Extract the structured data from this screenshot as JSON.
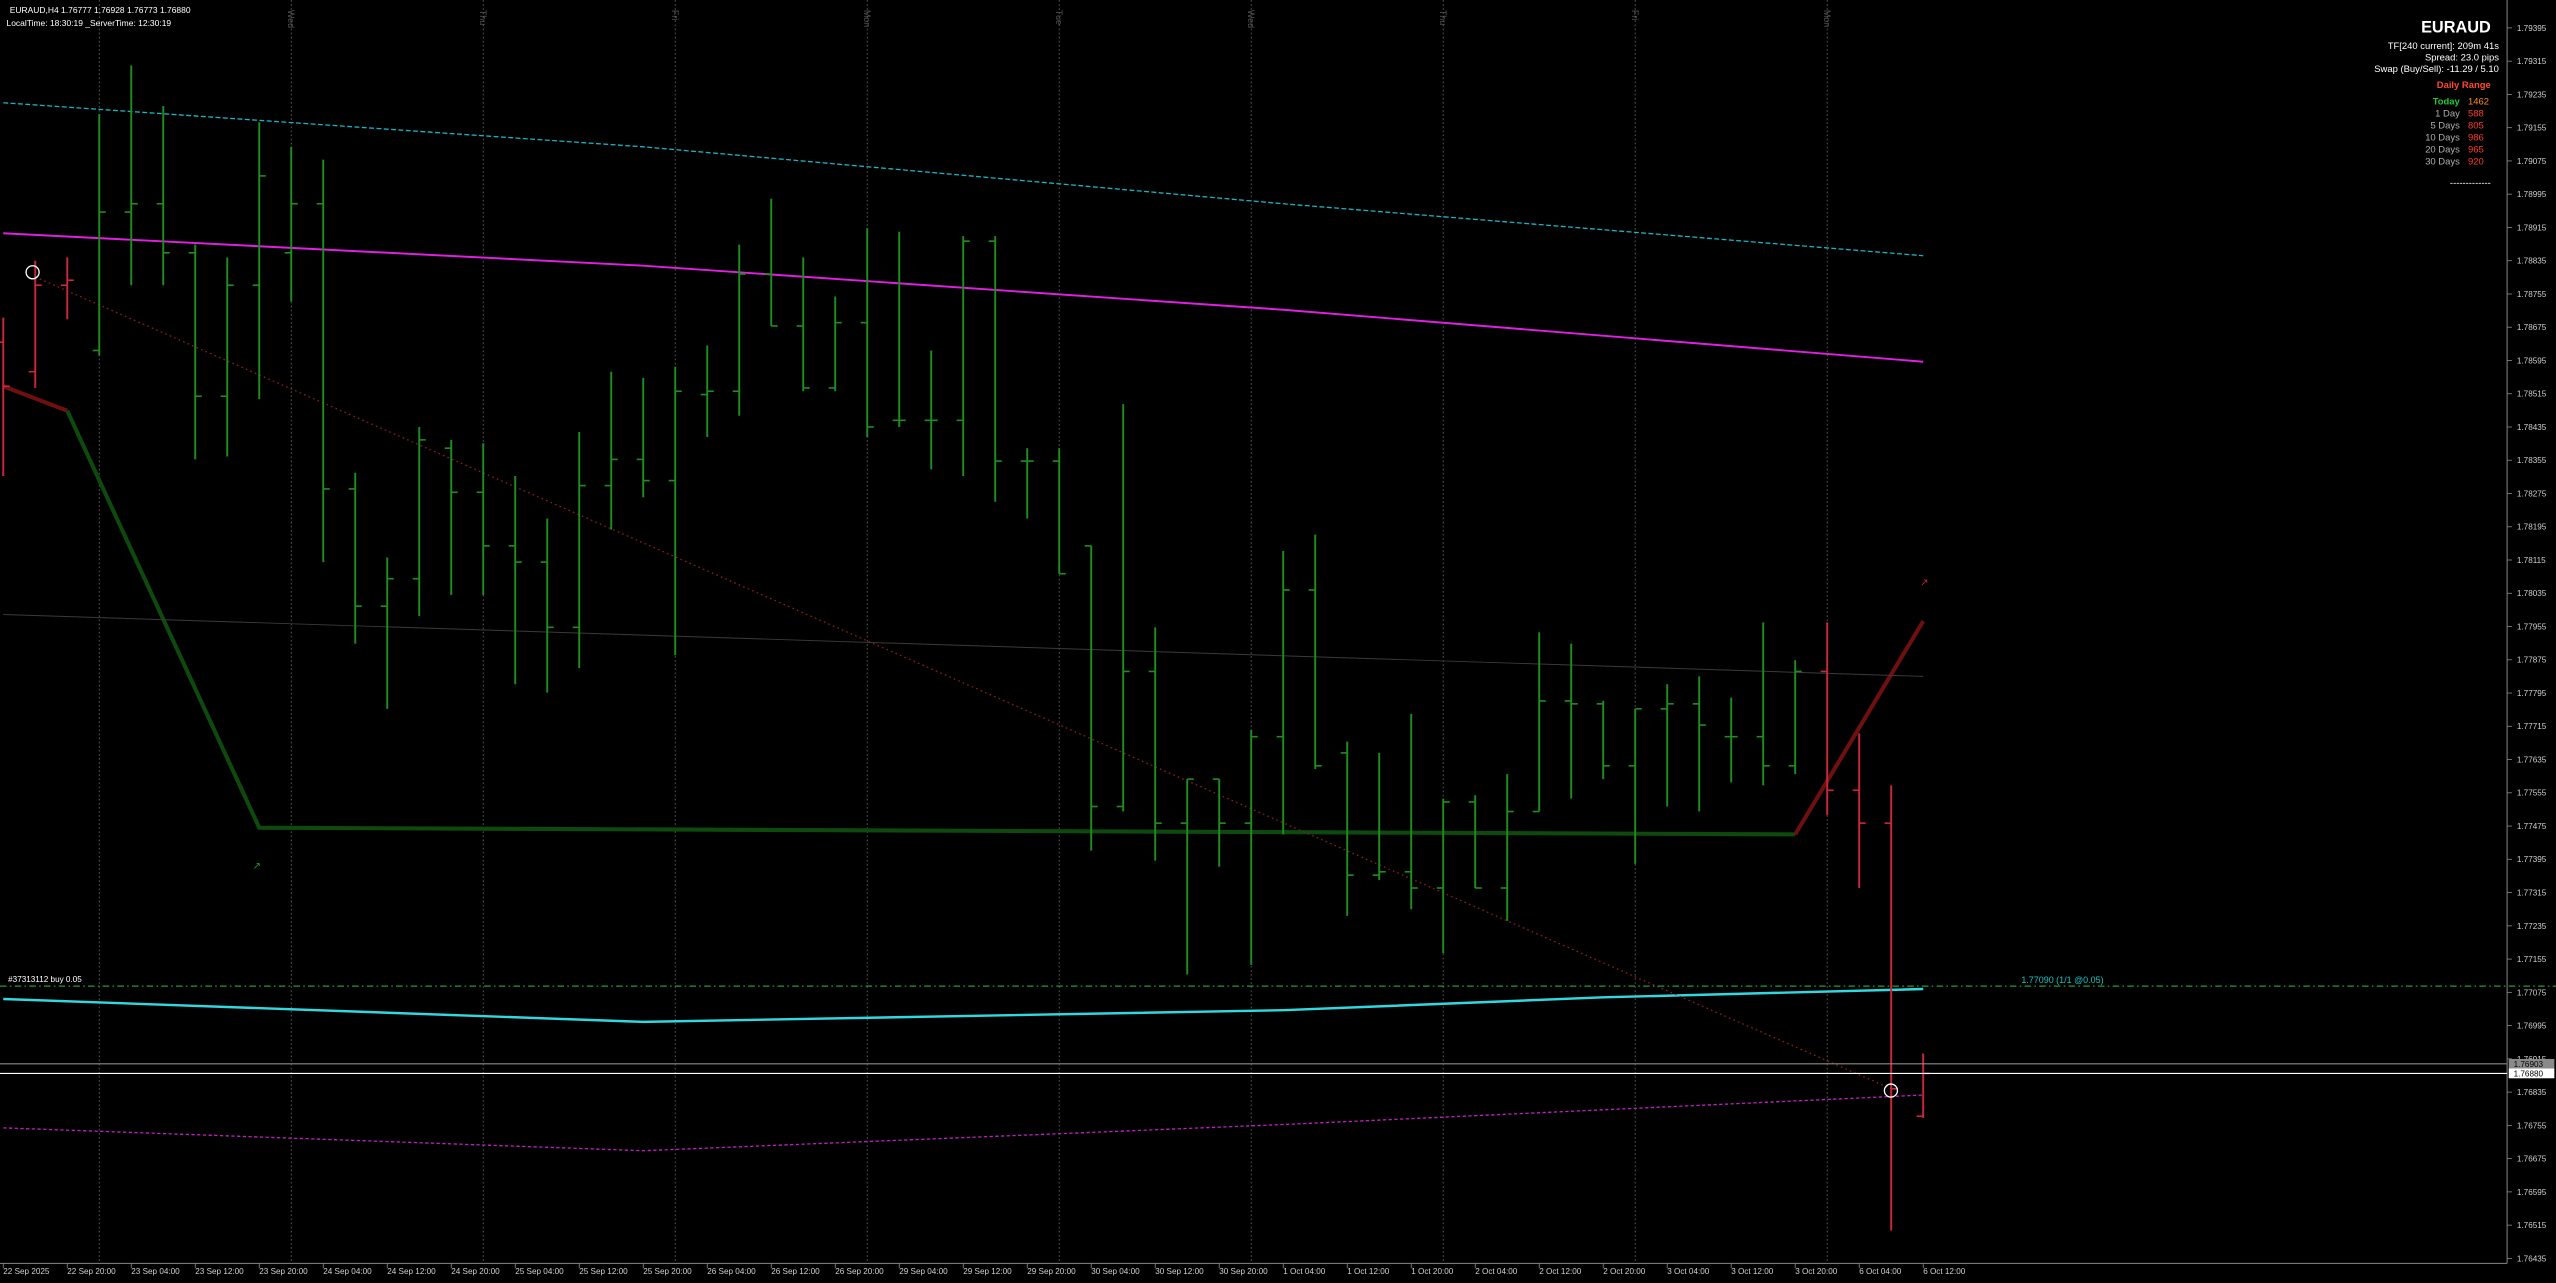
{
  "chart_data": {
    "type": "ohlc",
    "title": "EURAUD,H4  1.76777 1.76928 1.76773 1.76880",
    "subtitle": "LocalTime: 18:30:19  _ServerTime: 12:30:19",
    "categories": [
      "22 Sep 2025",
      null,
      "22 Sep 20:00",
      null,
      "23 Sep 04:00",
      null,
      "23 Sep 12:00",
      null,
      "23 Sep 20:00",
      null,
      "24 Sep 04:00",
      null,
      "24 Sep 12:00",
      null,
      "24 Sep 20:00",
      null,
      "25 Sep 04:00",
      null,
      "25 Sep 12:00",
      null,
      "25 Sep 20:00",
      null,
      "26 Sep 04:00",
      null,
      "26 Sep 12:00",
      null,
      "26 Sep 20:00",
      null,
      "29 Sep 04:00",
      null,
      "29 Sep 12:00",
      null,
      "29 Sep 20:00",
      null,
      "30 Sep 04:00",
      null,
      "30 Sep 12:00",
      null,
      "30 Sep 20:00",
      null,
      "1 Oct 04:00",
      null,
      "1 Oct 12:00",
      null,
      "1 Oct 20:00",
      null,
      "2 Oct 04:00",
      null,
      "2 Oct 12:00",
      null,
      "2 Oct 20:00",
      null,
      "3 Oct 04:00",
      null,
      "3 Oct 12:00",
      null,
      "3 Oct 20:00",
      null,
      "6 Oct 04:00",
      null,
      "6 Oct 12:00"
    ],
    "open": [
      1.78639,
      1.78568,
      1.78776,
      1.78619,
      1.78952,
      1.78972,
      1.78854,
      1.78509,
      1.78776,
      1.78854,
      1.78972,
      1.78286,
      1.78004,
      1.7807,
      1.78384,
      1.78278,
      1.78149,
      1.7811,
      1.77953,
      1.78294,
      1.78357,
      1.78306,
      1.78513,
      1.78521,
      1.78803,
      1.78678,
      1.78529,
      1.78686,
      1.78451,
      1.78451,
      1.78451,
      1.78882,
      1.78353,
      1.78353,
      1.78149,
      1.77522,
      1.77847,
      1.77482,
      1.77588,
      1.77482,
      1.7769,
      1.78043,
      1.77651,
      1.77357,
      1.77365,
      1.77326,
      1.77533,
      1.77326,
      1.7751,
      1.77776,
      1.77769,
      1.7762,
      1.77757,
      1.77769,
      1.7769,
      1.7769,
      1.7762,
      1.77847,
      1.77561,
      1.77482,
      1.76777
    ],
    "high": [
      1.78698,
      1.78835,
      1.78843,
      1.79188,
      1.79305,
      1.79207,
      1.78874,
      1.78843,
      1.79168,
      1.79109,
      1.79078,
      1.78325,
      1.78121,
      1.78435,
      1.78404,
      1.78396,
      1.78317,
      1.78215,
      1.78423,
      1.78568,
      1.78553,
      1.7858,
      1.78631,
      1.78874,
      1.78984,
      1.78843,
      1.78749,
      1.78913,
      1.78905,
      1.78619,
      1.78894,
      1.78894,
      1.78384,
      1.78384,
      1.78149,
      1.7849,
      1.77953,
      1.77588,
      1.77588,
      1.77706,
      1.78137,
      1.78176,
      1.77678,
      1.77651,
      1.77745,
      1.77541,
      1.77549,
      1.776,
      1.77941,
      1.77914,
      1.77776,
      1.77757,
      1.77816,
      1.77835,
      1.77784,
      1.77965,
      1.77874,
      1.77965,
      1.77698,
      1.77573,
      1.76928
    ],
    "low": [
      1.78317,
      1.78529,
      1.78694,
      1.78607,
      1.78776,
      1.78776,
      1.78357,
      1.78364,
      1.78502,
      1.78737,
      1.7811,
      1.77914,
      1.77757,
      1.7798,
      1.78031,
      1.78031,
      1.77816,
      1.77796,
      1.77855,
      1.78188,
      1.78266,
      1.77886,
      1.78411,
      1.78462,
      1.78678,
      1.78521,
      1.78521,
      1.78411,
      1.78435,
      1.78333,
      1.78317,
      1.78255,
      1.78215,
      1.78082,
      1.77416,
      1.7751,
      1.77392,
      1.77118,
      1.77377,
      1.77141,
      1.77455,
      1.77612,
      1.77259,
      1.77345,
      1.77275,
      1.77169,
      1.77326,
      1.77247,
      1.7751,
      1.77541,
      1.77588,
      1.77384,
      1.77522,
      1.7751,
      1.7758,
      1.77573,
      1.776,
      1.77502,
      1.77326,
      1.76502,
      1.76773
    ],
    "close": [
      1.78533,
      1.78776,
      1.78788,
      1.78952,
      1.78972,
      1.78854,
      1.78509,
      1.78776,
      1.79039,
      1.78972,
      1.78286,
      1.78004,
      1.7807,
      1.78404,
      1.78278,
      1.78149,
      1.7811,
      1.77953,
      1.78294,
      1.78357,
      1.78306,
      1.78521,
      1.78521,
      1.78803,
      1.78678,
      1.78529,
      1.78686,
      1.78435,
      1.78451,
      1.78451,
      1.78882,
      1.78353,
      1.78353,
      1.78082,
      1.77522,
      1.77847,
      1.77482,
      1.77588,
      1.77482,
      1.7769,
      1.78043,
      1.7762,
      1.77357,
      1.77365,
      1.77326,
      1.77533,
      1.77326,
      1.7751,
      1.77776,
      1.77769,
      1.7762,
      1.77757,
      1.77769,
      1.77718,
      1.7769,
      1.7762,
      1.77847,
      1.77561,
      1.77482,
      1.76843,
      1.7688
    ],
    "colors": [
      "#c8283c",
      "#c8283c",
      "#c8283c",
      "#1e8c1e",
      "#1e8c1e",
      "#1e8c1e",
      "#1e8c1e",
      "#1e8c1e",
      "#1e8c1e",
      "#1e8c1e",
      "#1e8c1e",
      "#1e8c1e",
      "#1e8c1e",
      "#1e8c1e",
      "#1e8c1e",
      "#1e8c1e",
      "#1e8c1e",
      "#1e8c1e",
      "#1e8c1e",
      "#1e8c1e",
      "#1e8c1e",
      "#1e8c1e",
      "#1e8c1e",
      "#1e8c1e",
      "#1e8c1e",
      "#1e8c1e",
      "#1e8c1e",
      "#1e8c1e",
      "#1e8c1e",
      "#1e8c1e",
      "#1e8c1e",
      "#1e8c1e",
      "#1e8c1e",
      "#1e8c1e",
      "#1e8c1e",
      "#1e8c1e",
      "#1e8c1e",
      "#1e8c1e",
      "#1e8c1e",
      "#1e8c1e",
      "#1e8c1e",
      "#1e8c1e",
      "#1e8c1e",
      "#1e8c1e",
      "#1e8c1e",
      "#1e8c1e",
      "#1e8c1e",
      "#1e8c1e",
      "#1e8c1e",
      "#1e8c1e",
      "#1e8c1e",
      "#1e8c1e",
      "#1e8c1e",
      "#1e8c1e",
      "#1e8c1e",
      "#1e8c1e",
      "#1e8c1e",
      "#c8283c",
      "#c8283c",
      "#c8283c",
      "#c8283c"
    ],
    "ylim": [
      1.76423,
      1.79462
    ],
    "yticks": [
      1.79395,
      1.79315,
      1.79235,
      1.79155,
      1.79075,
      1.78995,
      1.78915,
      1.78835,
      1.78755,
      1.78675,
      1.78595,
      1.78515,
      1.78435,
      1.78355,
      1.78275,
      1.78195,
      1.78115,
      1.78035,
      1.77955,
      1.77875,
      1.77795,
      1.77715,
      1.77635,
      1.77555,
      1.77475,
      1.77395,
      1.77315,
      1.77235,
      1.77155,
      1.77075,
      1.76995,
      1.76915,
      1.76835,
      1.76755,
      1.76675,
      1.76595,
      1.76515,
      1.76435
    ],
    "day_separators": {
      "indices": [
        3,
        9,
        15,
        21,
        27,
        33,
        39,
        45,
        51,
        57
      ],
      "labels": [
        null,
        "Wed",
        "Thu",
        "Fri",
        "Mon",
        "Tue",
        "Wed",
        "Thu",
        "Fri",
        "Mon"
      ]
    },
    "overlays": [
      {
        "color": "#19b4c4",
        "dash": "3 1.5",
        "width": 0.8,
        "x": [
          0,
          20,
          40,
          60
        ],
        "values": [
          1.79215,
          1.79109,
          1.78972,
          1.78847
        ]
      },
      {
        "color": "#e020e0",
        "dash": "none",
        "width": 1.2,
        "x": [
          0,
          20,
          40,
          60
        ],
        "values": [
          1.78901,
          1.78823,
          1.78717,
          1.78592
        ]
      },
      {
        "color": "#30d8e0",
        "dash": "none",
        "width": 1.5,
        "x": [
          0,
          20,
          40,
          50,
          60
        ],
        "values": [
          1.77059,
          1.77004,
          1.77032,
          1.77063,
          1.77083
        ]
      },
      {
        "color": "#c020c0",
        "dash": "2 1.5",
        "width": 0.8,
        "x": [
          0,
          20,
          40,
          60
        ],
        "values": [
          1.76749,
          1.76694,
          1.76757,
          1.76828
        ]
      },
      {
        "color": "#6e1010",
        "dash": "none",
        "width": 2.5,
        "x": [
          0,
          2
        ],
        "values": [
          1.78533,
          1.78474
        ]
      },
      {
        "color": "#0e4a0e",
        "dash": "none",
        "width": 2.5,
        "x": [
          2,
          8,
          56
        ],
        "values": [
          1.78474,
          1.77471,
          1.77455
        ]
      },
      {
        "color": "#6e1010",
        "dash": "none",
        "width": 2.5,
        "x": [
          56,
          60
        ],
        "values": [
          1.77455,
          1.77968
        ]
      },
      {
        "color": "#8c1e1e",
        "dash": "1 2",
        "width": 0.8,
        "x": [
          1,
          59
        ],
        "values": [
          1.78796,
          1.76843
        ]
      },
      {
        "color": "#3a3a3a",
        "dash": "none",
        "width": 0.6,
        "x": [
          0,
          60
        ],
        "values": [
          1.77984,
          1.77835
        ]
      }
    ],
    "order": {
      "label": "#37313112 buy 0.05",
      "price": 1.7709,
      "tag": "1.77090 (1/1 @0.05)",
      "color": "#1e9c3c"
    },
    "price_lines": [
      {
        "value": 1.76903,
        "label": "1.76903",
        "color": "#8a8a8a"
      },
      {
        "value": 1.7688,
        "label": "1.76880",
        "color": "#ffffff"
      }
    ],
    "info_panel": {
      "symbol": "EURAUD",
      "lines": [
        "TF[240 current]: 209m 41s",
        "Spread: 23.0 pips",
        "Swap (Buy/Sell): -11.29 / 5.10"
      ],
      "range_title": "Daily Range",
      "rows": [
        {
          "label": "Today",
          "value": 1462
        },
        {
          "label": "1 Day",
          "value": 588
        },
        {
          "label": "5 Days",
          "value": 805
        },
        {
          "label": "10 Days",
          "value": 986
        },
        {
          "label": "20 Days",
          "value": 965
        },
        {
          "label": "30 Days",
          "value": 920
        }
      ],
      "rule": "-------------"
    }
  }
}
